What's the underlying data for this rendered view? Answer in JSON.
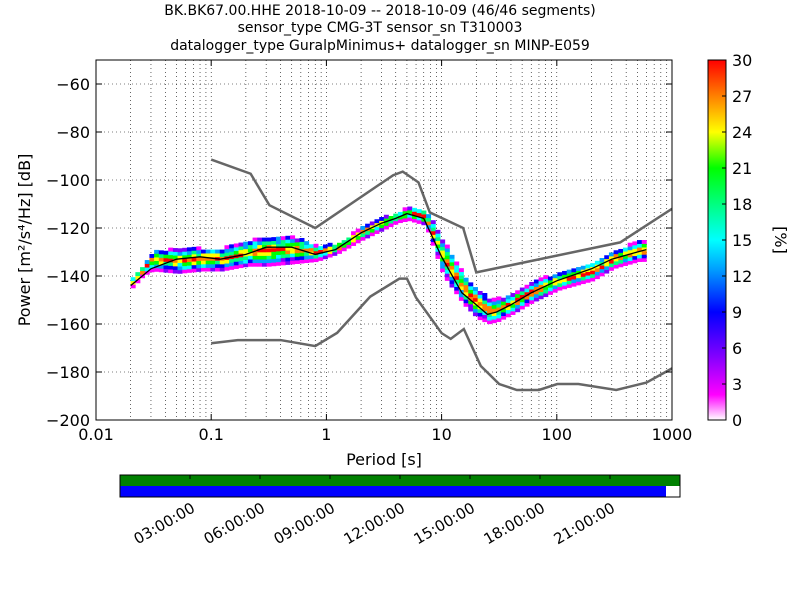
{
  "title_lines": [
    "BK.BK67.00.HHE   2018-10-09 -- 2018-10-09  (46/46 segments)",
    "sensor_type CMG-3T sensor_sn T310003",
    "datalogger_type GuralpMinimus+ datalogger_sn MINP-E059"
  ],
  "chart_data": [
    {
      "type": "heatmap",
      "xlabel": "Period [s]",
      "ylabel": "Power [m²/s⁴/Hz] [dB]",
      "xscale": "log",
      "xlim": [
        0.01,
        1000
      ],
      "ylim": [
        -200,
        -50
      ],
      "x_ticks": [
        0.01,
        0.1,
        1,
        10,
        100,
        1000
      ],
      "x_tick_labels": [
        "0.01",
        "0.1",
        "1",
        "10",
        "100",
        "1000"
      ],
      "y_ticks": [
        -60,
        -80,
        -100,
        -120,
        -140,
        -160,
        -180,
        -200
      ],
      "y_tick_labels": [
        "−60",
        "−80",
        "−100",
        "−120",
        "−140",
        "−160",
        "−180",
        "−200"
      ],
      "grid": "dotted",
      "colorbar": {
        "label": "[%]",
        "range": [
          0,
          30
        ],
        "ticks": [
          "0",
          "3",
          "6",
          "9",
          "12",
          "15",
          "18",
          "21",
          "24",
          "27",
          "30"
        ],
        "colormap": [
          "#ffffff",
          "#ff00ff",
          "#7f00ff",
          "#0000ff",
          "#00a0ff",
          "#00ffff",
          "#00ff80",
          "#00ff00",
          "#ffff00",
          "#ff8000",
          "#ff0000"
        ]
      },
      "noise_model_color": "#666666",
      "nhnm": {
        "x": [
          0.1,
          0.22,
          0.32,
          0.8,
          3.8,
          4.6,
          6.3,
          7.9,
          15.4,
          20,
          354.8,
          1000
        ],
        "y": [
          -91.5,
          -97.4,
          -110.5,
          -120,
          -98,
          -96.5,
          -101,
          -113.5,
          -120,
          -138.5,
          -126,
          -112
        ]
      },
      "nlnm": {
        "x": [
          0.1,
          0.17,
          0.4,
          0.8,
          1.24,
          2.4,
          4.3,
          5,
          6,
          10,
          12,
          15.6,
          21.9,
          31.6,
          45,
          70,
          101,
          154,
          328,
          600,
          1000
        ],
        "y": [
          -168,
          -166.7,
          -166.7,
          -169.2,
          -163.7,
          -148.6,
          -141.1,
          -141.1,
          -149,
          -163.8,
          -166.2,
          -162.1,
          -177.5,
          -185,
          -187.5,
          -187.5,
          -185,
          -185,
          -187.5,
          -184.4,
          -178.5
        ]
      },
      "mode_curve": {
        "x": [
          0.02,
          0.03,
          0.05,
          0.08,
          0.12,
          0.2,
          0.3,
          0.5,
          0.8,
          1.2,
          2,
          3,
          4,
          5,
          7,
          10,
          15,
          20,
          25,
          30,
          40,
          60,
          100,
          200,
          300,
          500,
          600
        ],
        "y": [
          -144,
          -137,
          -133,
          -132,
          -133,
          -131,
          -128,
          -128,
          -131,
          -129,
          -122,
          -118,
          -116,
          -114,
          -116,
          -132,
          -147,
          -152,
          -156,
          -155,
          -152,
          -147,
          -142,
          -137,
          -133,
          -130,
          -129
        ]
      },
      "psd_band": {
        "x": [
          0.02,
          0.025,
          0.03,
          0.05,
          0.08,
          0.12,
          0.2,
          0.3,
          0.5,
          0.8,
          1.2,
          2,
          3,
          4,
          5,
          7,
          10,
          15,
          20,
          25,
          30,
          40,
          60,
          100,
          200,
          300,
          500,
          600
        ],
        "upper": [
          -141,
          -136,
          -130,
          -129,
          -129,
          -129,
          -126,
          -124,
          -124,
          -128,
          -127,
          -120,
          -116,
          -114,
          -112,
          -113,
          -126,
          -140,
          -146,
          -150,
          -150,
          -148,
          -143,
          -139,
          -135,
          -130,
          -126,
          -126
        ],
        "lower": [
          -145,
          -140,
          -138,
          -139,
          -138,
          -138,
          -136,
          -136,
          -135,
          -134,
          -131,
          -125,
          -121,
          -118,
          -117,
          -119,
          -140,
          -152,
          -158,
          -160,
          -159,
          -156,
          -151,
          -146,
          -142,
          -137,
          -134,
          -134
        ]
      }
    },
    {
      "type": "timeline",
      "x_tick_labels": [
        "03:00:00",
        "06:00:00",
        "09:00:00",
        "12:00:00",
        "15:00:00",
        "18:00:00",
        "21:00:00"
      ],
      "time_range_hours": [
        0,
        24
      ],
      "rows": [
        {
          "color": "#008000",
          "coverage": [
            0,
            24
          ]
        },
        {
          "color": "#0000ff",
          "coverage": [
            0,
            23.4
          ]
        }
      ]
    }
  ]
}
